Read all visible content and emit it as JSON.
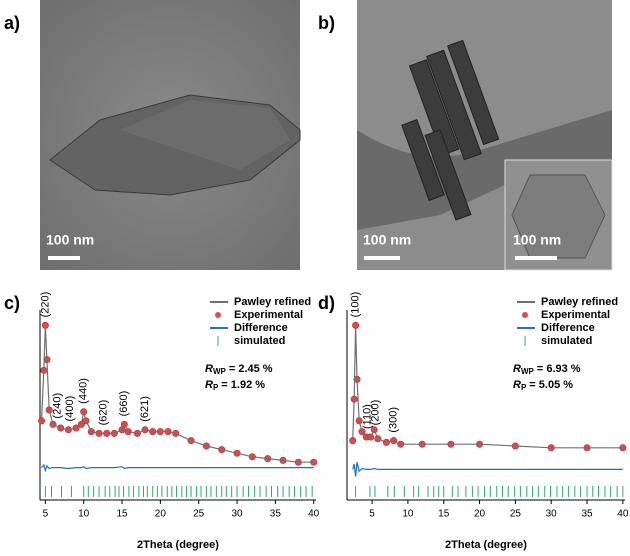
{
  "images": [
    {
      "label": "a)",
      "scale": "100 nm"
    },
    {
      "label": "b)",
      "scale": "100 nm",
      "inset_scale": "100 nm"
    }
  ],
  "chart_data": [
    {
      "type": "line",
      "label": "c)",
      "xlabel": "2Theta (degree)",
      "xlim": [
        4.3,
        40.3
      ],
      "xticks": [
        5,
        10,
        15,
        20,
        25,
        30,
        35,
        40
      ],
      "ylim": [
        0,
        100
      ],
      "x": [
        4.5,
        4.8,
        5.0,
        5.2,
        5.5,
        6.0,
        7.0,
        8.0,
        9.0,
        9.7,
        10.0,
        10.3,
        11,
        12,
        13,
        14,
        15,
        15.3,
        15.8,
        17,
        18,
        19,
        20,
        21,
        22,
        24,
        26,
        28,
        30,
        32,
        34,
        36,
        38,
        40
      ],
      "series": [
        {
          "name": "Pawley refined",
          "color": "#707070",
          "values": [
            44,
            72,
            97,
            78,
            50,
            42,
            40,
            39,
            40,
            42,
            49,
            44,
            38,
            37,
            37,
            37,
            39,
            42,
            38,
            37,
            39,
            38,
            38,
            38,
            37,
            33,
            30,
            28,
            26,
            24,
            23,
            22,
            21,
            21
          ]
        },
        {
          "name": "Experimental",
          "color": "#e8474a",
          "values": [
            44,
            72,
            97,
            78,
            50,
            42,
            40,
            39,
            40,
            42,
            49,
            44,
            38,
            37,
            37,
            37,
            39,
            42,
            38,
            37,
            39,
            38,
            38,
            38,
            37,
            33,
            30,
            28,
            26,
            24,
            23,
            22,
            21,
            21
          ]
        },
        {
          "name": "Difference",
          "color": "#1f6fd1",
          "values": [
            18,
            19.5,
            16.5,
            19,
            17.5,
            18,
            18,
            17.5,
            18,
            18,
            18.5,
            17.5,
            18,
            18,
            18,
            18,
            18.5,
            17.5,
            18,
            18,
            18,
            18,
            18,
            18,
            18,
            18,
            18,
            18,
            18,
            18,
            18,
            18,
            18,
            18
          ]
        },
        {
          "name": "simulated",
          "color": "#2ea86b",
          "x": [
            5.0,
            5.8,
            7.1,
            8.4,
            10.0,
            10.6,
            11.3,
            12.0,
            12.8,
            13.4,
            14.1,
            14.6,
            15.2,
            15.9,
            16.5,
            17.2,
            17.8,
            18.3,
            19.0,
            19.6,
            20.2,
            20.9,
            21.5,
            22.1,
            22.8,
            23.4,
            24.0,
            24.7,
            25.3,
            26.0,
            26.6,
            27.3,
            28.0,
            28.6,
            29.3,
            30.0,
            30.8,
            31.5,
            32.3,
            33.0,
            33.8,
            34.5,
            35.3,
            36.0,
            36.8,
            37.5,
            38.3,
            39.0,
            39.8
          ]
        }
      ],
      "annotations": [
        {
          "text": "(220)",
          "x": 5.0
        },
        {
          "text": "(240)",
          "x": 6.6
        },
        {
          "text": "(400)",
          "x": 8.2
        },
        {
          "text": "(440)",
          "x": 10.0
        },
        {
          "text": "(620)",
          "x": 12.6
        },
        {
          "text": "(660)",
          "x": 15.3
        },
        {
          "text": "(621)",
          "x": 18.0
        }
      ],
      "stats": [
        {
          "symbol": "R",
          "sub": "WP",
          "text": "= 2.45 %"
        },
        {
          "symbol": "R",
          "sub": "P",
          "text": "= 1.92 %"
        }
      ]
    },
    {
      "type": "line",
      "label": "d)",
      "xlabel": "2Theta (degree)",
      "xlim": [
        1.5,
        40.3
      ],
      "xticks": [
        5,
        10,
        15,
        20,
        25,
        30,
        35,
        40
      ],
      "ylim": [
        0,
        100
      ],
      "x": [
        2.3,
        2.5,
        2.7,
        2.9,
        3.2,
        3.6,
        4.2,
        4.8,
        5.3,
        5.8,
        7,
        8,
        9,
        12,
        16,
        20,
        25,
        30,
        35,
        40
      ],
      "series": [
        {
          "name": "Pawley refined",
          "color": "#707070",
          "values": [
            33,
            56,
            97,
            67,
            44,
            38,
            35,
            35,
            39,
            34,
            32,
            33,
            31,
            31,
            31,
            31,
            30,
            29,
            29,
            29
          ]
        },
        {
          "name": "Experimental",
          "color": "#e8474a",
          "values": [
            33,
            56,
            97,
            67,
            44,
            38,
            35,
            35,
            39,
            34,
            32,
            33,
            31,
            31,
            31,
            31,
            30,
            29,
            29,
            29
          ]
        },
        {
          "name": "Difference",
          "color": "#1f6fd1",
          "values": [
            17,
            20,
            13,
            21,
            16,
            17.5,
            17,
            17,
            17.5,
            17,
            17,
            17,
            17,
            17,
            17,
            17,
            17,
            17,
            17,
            17
          ]
        },
        {
          "name": "simulated",
          "color": "#2ea86b",
          "x": [
            2.7,
            4.7,
            5.4,
            7.2,
            8.1,
            9.5,
            10.8,
            11.5,
            12.8,
            13.6,
            14.3,
            15.0,
            16.2,
            17.0,
            18.1,
            19.0,
            19.8,
            20.7,
            21.5,
            22.4,
            23.2,
            24.0,
            24.9,
            25.7,
            26.6,
            27.4,
            28.2,
            29.1,
            29.9,
            30.8,
            31.6,
            32.4,
            33.3,
            34.1,
            35.0,
            35.8,
            36.6,
            37.5,
            38.3,
            39.2,
            40.0
          ]
        }
      ],
      "annotations": [
        {
          "text": "(100)",
          "x": 2.7
        },
        {
          "text": "(110)",
          "x": 4.4
        },
        {
          "text": "(200)",
          "x": 5.5
        },
        {
          "text": "(300)",
          "x": 8.0
        }
      ],
      "stats": [
        {
          "symbol": "R",
          "sub": "WP",
          "text": "= 6.93 %"
        },
        {
          "symbol": "R",
          "sub": "P",
          "text": "= 5.05 %"
        }
      ]
    }
  ]
}
